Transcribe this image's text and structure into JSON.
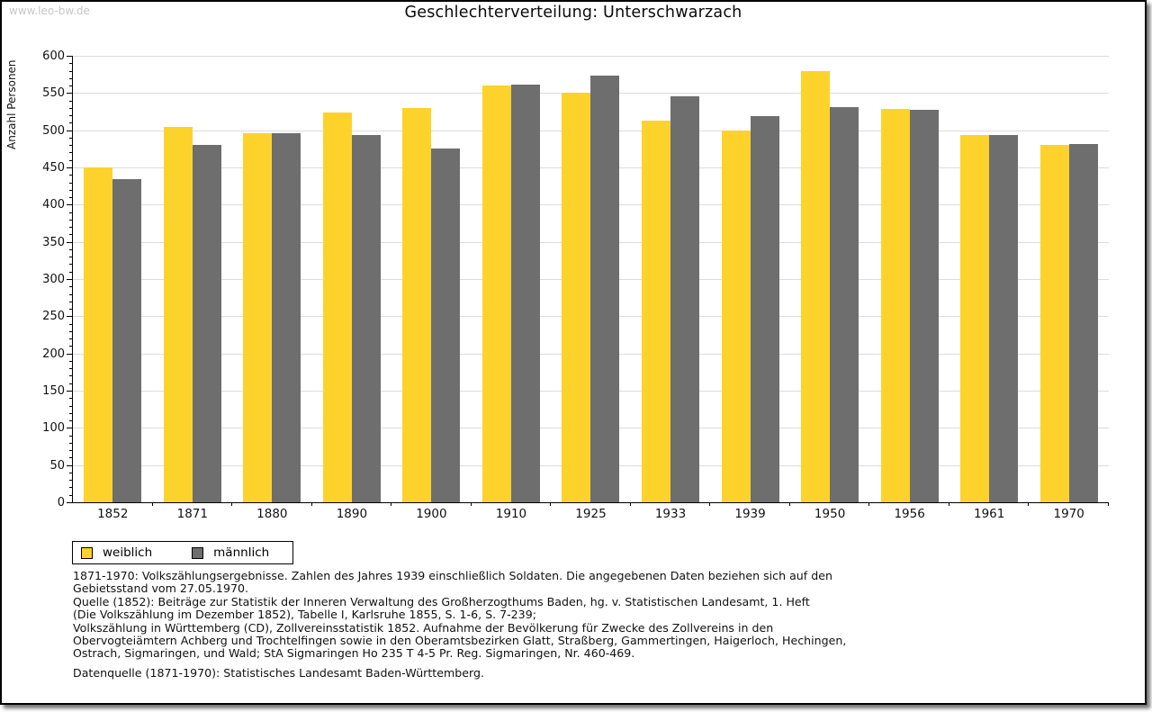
{
  "watermark": "www.leo-bw.de",
  "title": "Geschlechterverteilung: Unterschwarzach",
  "chart_data": {
    "type": "bar",
    "title": "Geschlechterverteilung: Unterschwarzach",
    "xlabel": "",
    "ylabel": "Anzahl Personen",
    "ylim": [
      0,
      600
    ],
    "ytick_step": 50,
    "minor_tick_step": 10,
    "grid": true,
    "legend_position": "bottom-left",
    "categories": [
      "1852",
      "1871",
      "1880",
      "1890",
      "1900",
      "1910",
      "1925",
      "1933",
      "1939",
      "1950",
      "1956",
      "1961",
      "1970"
    ],
    "series": [
      {
        "name": "weiblich",
        "color": "#fdd32b",
        "values": [
          450,
          505,
          496,
          524,
          530,
          560,
          550,
          513,
          500,
          579,
          529,
          493,
          480
        ]
      },
      {
        "name": "männlich",
        "color": "#6e6e6e",
        "values": [
          434,
          480,
          496,
          493,
          475,
          561,
          573,
          545,
          519,
          531,
          528,
          493,
          481
        ]
      }
    ]
  },
  "legend": {
    "female_label": "weiblich",
    "male_label": "männlich"
  },
  "footnotes": [
    "1871-1970: Volkszählungsergebnisse. Zahlen des Jahres 1939 einschließlich Soldaten. Die angegebenen Daten beziehen sich auf den",
    "Gebietsstand vom 27.05.1970.",
    "Quelle (1852): Beiträge zur Statistik der Inneren Verwaltung des Großherzogthums Baden, hg. v. Statistischen Landesamt, 1. Heft",
    "(Die Volkszählung im Dezember 1852), Tabelle I, Karlsruhe 1855, S. 1-6, S. 7-239;",
    "Volkszählung in Württemberg (CD), Zollvereinsstatistik 1852. Aufnahme der Bevölkerung für Zwecke des Zollvereins in den",
    "Obervogteiämtern Achberg und Trochtelfingen sowie in den Oberamtsbezirken Glatt, Straßberg, Gammertingen, Haigerloch, Hechingen,",
    "Ostrach, Sigmaringen, und Wald; StA Sigmaringen Ho 235 T 4-5 Pr. Reg. Sigmaringen, Nr. 460-469."
  ],
  "datasource": "Datenquelle (1871-1970): Statistisches Landesamt Baden-Württemberg."
}
